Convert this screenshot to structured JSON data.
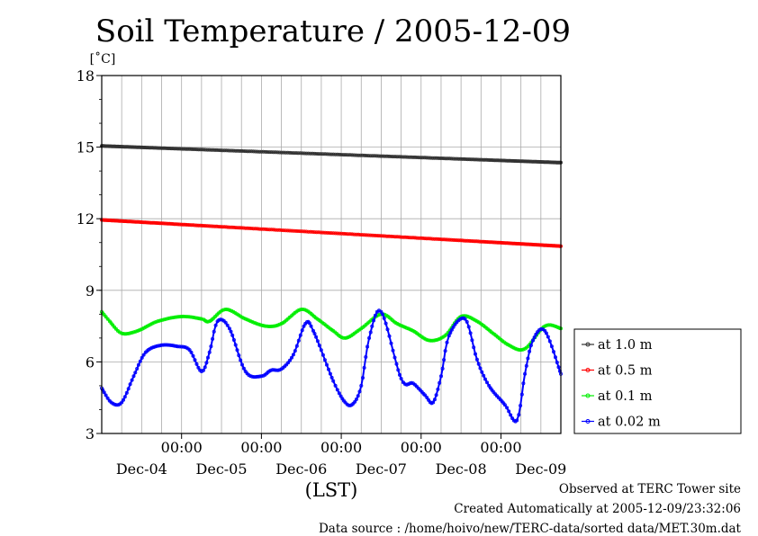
{
  "chart_data": {
    "type": "line",
    "title": "Soil Temperature / 2005-12-09",
    "ylabel": "[˚C]",
    "xlabel": "(LST)",
    "ylim": [
      3,
      18
    ],
    "y_ticks": [
      "3",
      "6",
      "9",
      "12",
      "15",
      "18"
    ],
    "xlim": [
      0,
      5.75
    ],
    "x_ticks": [
      {
        "x": 1,
        "time": "00:00",
        "date": "Dec-05"
      },
      {
        "x": 2,
        "time": "00:00",
        "date": "Dec-06"
      },
      {
        "x": 3,
        "time": "00:00",
        "date": "Dec-07"
      },
      {
        "x": 4,
        "time": "00:00",
        "date": "Dec-08"
      },
      {
        "x": 5,
        "time": "00:00",
        "date": "Dec-09"
      }
    ],
    "x_day_labels": [
      {
        "x": 0.5,
        "date": "Dec-04"
      },
      {
        "x": 1.5,
        "date": "Dec-05"
      },
      {
        "x": 2.5,
        "date": "Dec-06"
      },
      {
        "x": 3.5,
        "date": "Dec-07"
      },
      {
        "x": 4.5,
        "date": "Dec-08"
      },
      {
        "x": 5.5,
        "date": "Dec-09"
      }
    ],
    "grid": true,
    "legend_position": "right",
    "series": [
      {
        "name": "at 1.0 m",
        "color": "#333333",
        "x": [
          0,
          5.75
        ],
        "values": [
          15.05,
          14.35
        ]
      },
      {
        "name": "at 0.5 m",
        "color": "#ff0000",
        "x": [
          0,
          5.75
        ],
        "values": [
          11.95,
          10.85
        ]
      },
      {
        "name": "at 0.1 m",
        "color": "#00ee00",
        "x": [
          0,
          0.1,
          0.25,
          0.45,
          0.7,
          1.0,
          1.25,
          1.35,
          1.55,
          1.8,
          2.05,
          2.25,
          2.5,
          2.7,
          2.9,
          3.05,
          3.25,
          3.5,
          3.7,
          3.9,
          4.1,
          4.3,
          4.5,
          4.7,
          4.9,
          5.1,
          5.3,
          5.55,
          5.75
        ],
        "values": [
          8.1,
          7.7,
          7.2,
          7.3,
          7.7,
          7.9,
          7.8,
          7.7,
          8.2,
          7.8,
          7.5,
          7.6,
          8.2,
          7.8,
          7.3,
          7.0,
          7.4,
          8.0,
          7.6,
          7.3,
          6.9,
          7.1,
          7.9,
          7.7,
          7.2,
          6.7,
          6.55,
          7.5,
          7.4
        ]
      },
      {
        "name": "at 0.02 m",
        "color": "#0000ff",
        "x": [
          0,
          0.12,
          0.25,
          0.4,
          0.55,
          0.75,
          0.95,
          1.1,
          1.25,
          1.35,
          1.45,
          1.6,
          1.8,
          2.0,
          2.12,
          2.25,
          2.4,
          2.55,
          2.65,
          2.9,
          3.05,
          3.15,
          3.25,
          3.35,
          3.5,
          3.75,
          3.9,
          4.05,
          4.15,
          4.25,
          4.35,
          4.55,
          4.7,
          4.85,
          5.05,
          5.2,
          5.3,
          5.4,
          5.55,
          5.75
        ],
        "values": [
          4.9,
          4.3,
          4.3,
          5.4,
          6.4,
          6.7,
          6.65,
          6.5,
          5.6,
          6.4,
          7.7,
          7.4,
          5.6,
          5.4,
          5.65,
          5.7,
          6.3,
          7.6,
          7.3,
          5.2,
          4.3,
          4.25,
          5.0,
          7.0,
          8.1,
          5.3,
          5.1,
          4.6,
          4.3,
          5.4,
          7.1,
          7.8,
          6.1,
          5.0,
          4.2,
          3.55,
          5.5,
          6.9,
          7.3,
          5.5
        ]
      }
    ]
  },
  "footer": {
    "observed": "Observed at TERC Tower site",
    "created": "Created Automatically at 2005-12-09/23:32:06",
    "source": "Data source : /home/hoivo/new/TERC-data/sorted  data/MET.30m.dat"
  }
}
